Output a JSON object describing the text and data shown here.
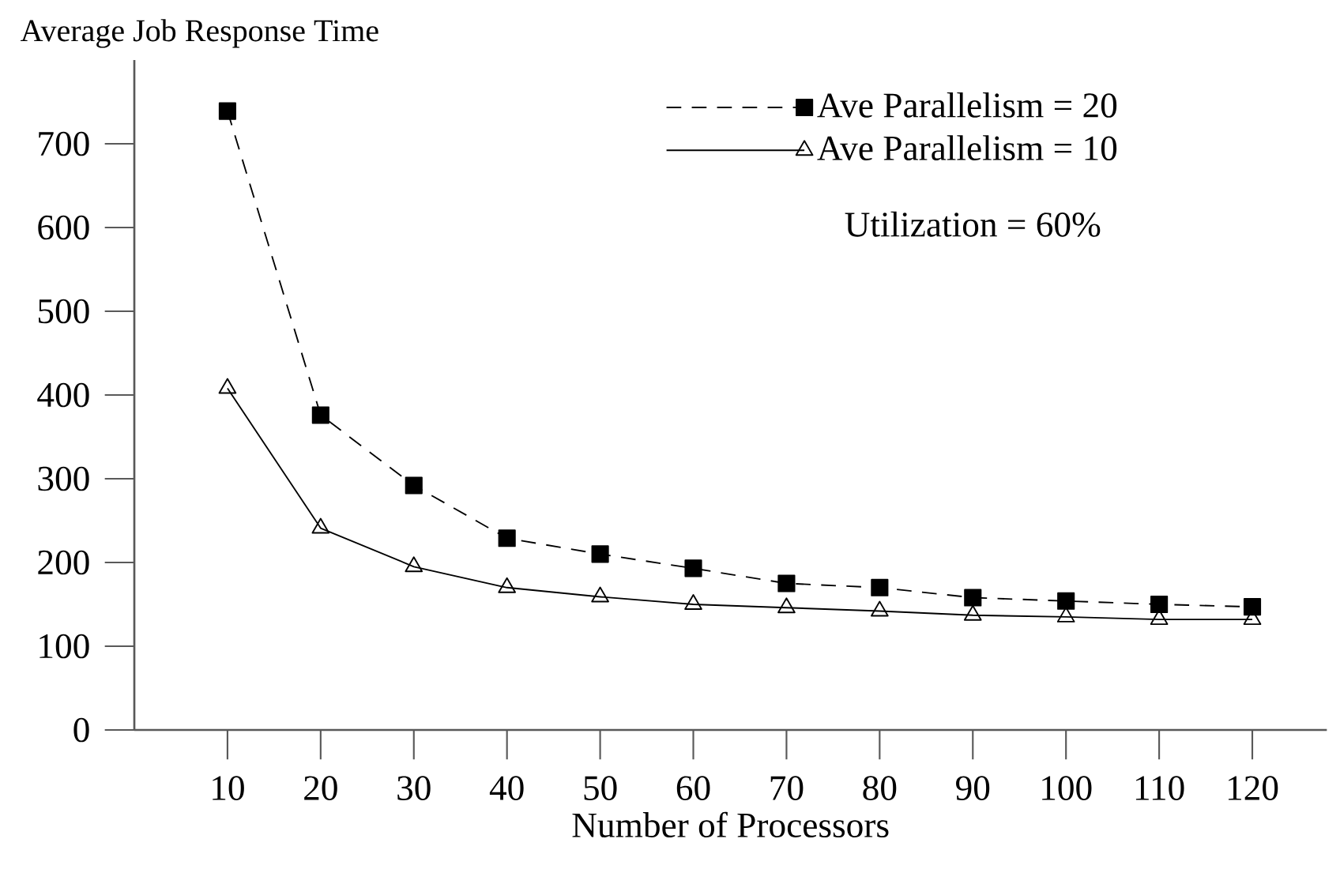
{
  "chart_data": {
    "type": "line",
    "title": "Average Job Response Time",
    "xlabel": "Number of Processors",
    "x": [
      10,
      20,
      30,
      40,
      50,
      60,
      70,
      80,
      90,
      100,
      110,
      120
    ],
    "series": [
      {
        "name": "Ave Parallelism = 20",
        "color": "#000000",
        "marker": "square",
        "line_style": "dashed",
        "values": [
          739,
          376,
          292,
          229,
          210,
          193,
          175,
          170,
          158,
          154,
          150,
          147
        ]
      },
      {
        "name": "Ave Parallelism = 10",
        "color": "#000000",
        "marker": "triangle",
        "line_style": "solid",
        "values": [
          408,
          241,
          195,
          170,
          159,
          150,
          146,
          142,
          137,
          135,
          132,
          132
        ]
      }
    ],
    "annotations": [
      "Utilization = 60%"
    ],
    "xlim": [
      0,
      128
    ],
    "ylim": [
      0,
      800
    ],
    "xticks": [
      10,
      20,
      30,
      40,
      50,
      60,
      70,
      80,
      90,
      100,
      110,
      120
    ],
    "yticks": [
      0,
      100,
      200,
      300,
      400,
      500,
      600,
      700
    ],
    "legend": "top right"
  }
}
